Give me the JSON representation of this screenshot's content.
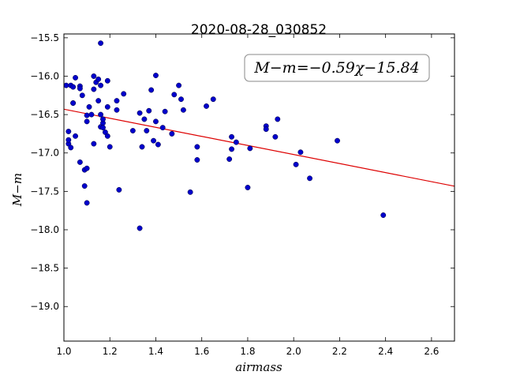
{
  "chart_data": {
    "type": "scatter",
    "title": "2020-08-28_030852",
    "xlabel": "airmass",
    "ylabel": "M−m",
    "xlim": [
      1.0,
      2.7
    ],
    "ylim": [
      -19.45,
      -15.45
    ],
    "y_inverted": true,
    "xticks": [
      1.0,
      1.2,
      1.4,
      1.6,
      1.8,
      2.0,
      2.2,
      2.4,
      2.6
    ],
    "xtick_labels": [
      "1.0",
      "1.2",
      "1.4",
      "1.6",
      "1.8",
      "2.0",
      "2.2",
      "2.4",
      "2.6"
    ],
    "yticks": [
      -15.5,
      -16.0,
      -16.5,
      -17.0,
      -17.5,
      -18.0,
      -18.5,
      -19.0
    ],
    "ytick_labels": [
      "−15.5",
      "−16.0",
      "−16.5",
      "−17.0",
      "−17.5",
      "−18.0",
      "−18.5",
      "−19.0"
    ],
    "grid": false,
    "point_color": "#0000cc",
    "fit_color": "#dd0000",
    "fit": {
      "slope": -0.59,
      "intercept": -15.84
    },
    "annotation": "M−m=−0.59χ−15.84",
    "points": [
      [
        1.01,
        -16.12
      ],
      [
        1.02,
        -16.88
      ],
      [
        1.02,
        -16.72
      ],
      [
        1.02,
        -16.83
      ],
      [
        1.03,
        -16.93
      ],
      [
        1.03,
        -16.12
      ],
      [
        1.04,
        -16.35
      ],
      [
        1.04,
        -16.35
      ],
      [
        1.04,
        -16.14
      ],
      [
        1.05,
        -16.02
      ],
      [
        1.05,
        -16.78
      ],
      [
        1.07,
        -17.12
      ],
      [
        1.07,
        -16.13
      ],
      [
        1.07,
        -16.16
      ],
      [
        1.08,
        -16.25
      ],
      [
        1.09,
        -17.22
      ],
      [
        1.09,
        -17.43
      ],
      [
        1.1,
        -17.65
      ],
      [
        1.1,
        -17.2
      ],
      [
        1.1,
        -16.51
      ],
      [
        1.1,
        -16.59
      ],
      [
        1.11,
        -16.4
      ],
      [
        1.12,
        -16.5
      ],
      [
        1.13,
        -16.0
      ],
      [
        1.13,
        -16.17
      ],
      [
        1.13,
        -16.88
      ],
      [
        1.14,
        -16.08
      ],
      [
        1.15,
        -16.32
      ],
      [
        1.15,
        -16.04
      ],
      [
        1.16,
        -16.12
      ],
      [
        1.16,
        -15.57
      ],
      [
        1.16,
        -16.5
      ],
      [
        1.16,
        -16.66
      ],
      [
        1.17,
        -16.61
      ],
      [
        1.17,
        -16.67
      ],
      [
        1.17,
        -16.56
      ],
      [
        1.18,
        -16.73
      ],
      [
        1.19,
        -16.06
      ],
      [
        1.19,
        -16.4
      ],
      [
        1.19,
        -16.78
      ],
      [
        1.2,
        -16.92
      ],
      [
        1.23,
        -16.44
      ],
      [
        1.23,
        -16.32
      ],
      [
        1.24,
        -17.48
      ],
      [
        1.26,
        -16.23
      ],
      [
        1.3,
        -16.71
      ],
      [
        1.33,
        -16.48
      ],
      [
        1.33,
        -17.98
      ],
      [
        1.34,
        -16.92
      ],
      [
        1.35,
        -16.56
      ],
      [
        1.36,
        -16.71
      ],
      [
        1.37,
        -16.45
      ],
      [
        1.38,
        -16.18
      ],
      [
        1.39,
        -16.84
      ],
      [
        1.4,
        -15.99
      ],
      [
        1.4,
        -16.59
      ],
      [
        1.41,
        -16.89
      ],
      [
        1.43,
        -16.67
      ],
      [
        1.44,
        -16.46
      ],
      [
        1.47,
        -16.75
      ],
      [
        1.48,
        -16.24
      ],
      [
        1.5,
        -16.12
      ],
      [
        1.51,
        -16.3
      ],
      [
        1.52,
        -16.44
      ],
      [
        1.55,
        -17.51
      ],
      [
        1.58,
        -16.92
      ],
      [
        1.58,
        -17.09
      ],
      [
        1.62,
        -16.39
      ],
      [
        1.65,
        -16.3
      ],
      [
        1.72,
        -17.08
      ],
      [
        1.73,
        -16.79
      ],
      [
        1.73,
        -16.95
      ],
      [
        1.75,
        -16.86
      ],
      [
        1.8,
        -17.45
      ],
      [
        1.81,
        -16.94
      ],
      [
        1.88,
        -16.65
      ],
      [
        1.88,
        -16.69
      ],
      [
        1.92,
        -16.79
      ],
      [
        1.93,
        -16.56
      ],
      [
        2.01,
        -17.15
      ],
      [
        2.03,
        -16.99
      ],
      [
        2.07,
        -17.33
      ],
      [
        2.19,
        -16.84
      ],
      [
        2.39,
        -17.81
      ]
    ]
  }
}
